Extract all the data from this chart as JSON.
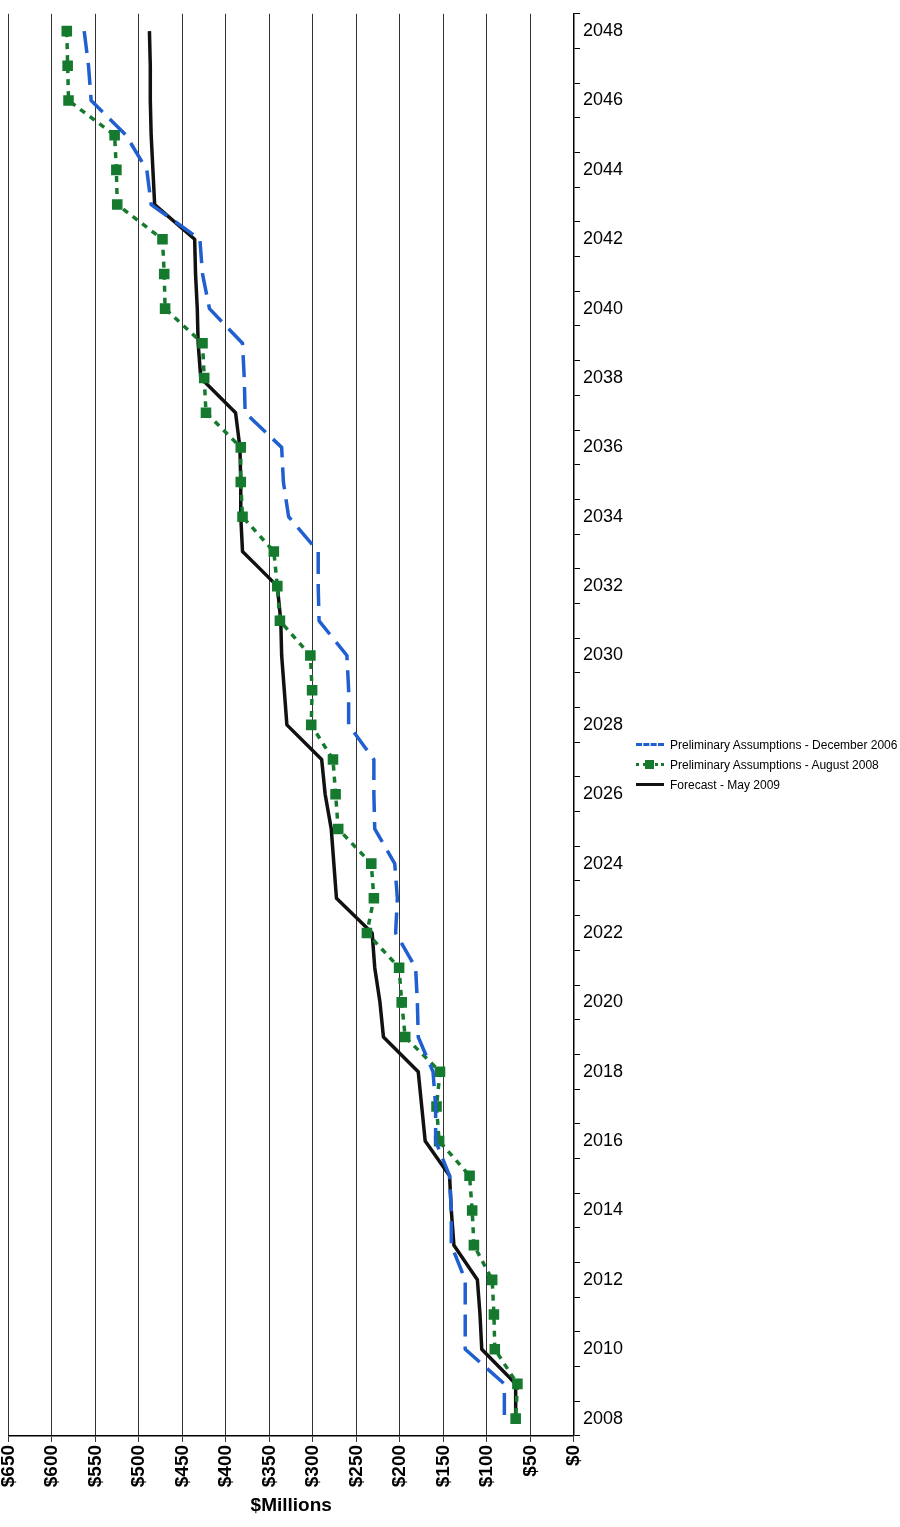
{
  "chart_data": {
    "type": "line",
    "orientation": "horizontal",
    "xlabel": "$Millions",
    "categories": [
      "2048",
      null,
      "2046",
      null,
      "2044",
      null,
      "2042",
      null,
      "2040",
      null,
      "2038",
      null,
      "2036",
      null,
      "2034",
      null,
      "2032",
      null,
      "2030",
      null,
      "2028",
      null,
      "2026",
      null,
      "2024",
      null,
      "2022",
      null,
      "2020",
      null,
      "2018",
      null,
      "2016",
      null,
      "2014",
      null,
      "2012",
      null,
      "2010",
      null,
      "2008"
    ],
    "xlim": [
      650,
      0
    ],
    "xticks": [
      {
        "value": 650,
        "label": "$650"
      },
      {
        "value": 600,
        "label": "$600"
      },
      {
        "value": 550,
        "label": "$550"
      },
      {
        "value": 500,
        "label": "$500"
      },
      {
        "value": 450,
        "label": "$450"
      },
      {
        "value": 400,
        "label": "$400"
      },
      {
        "value": 350,
        "label": "$350"
      },
      {
        "value": 300,
        "label": "$300"
      },
      {
        "value": 250,
        "label": "$250"
      },
      {
        "value": 200,
        "label": "$200"
      },
      {
        "value": 150,
        "label": "$150"
      },
      {
        "value": 100,
        "label": "$100"
      },
      {
        "value": 50,
        "label": "$50"
      },
      {
        "value": 0,
        "label": "$0"
      }
    ],
    "grid": "x",
    "legend": "right",
    "series": [
      {
        "name": "Preliminary Assumptions - December 2006",
        "color": "#1f5fd0",
        "line_style": "dashed",
        "marker": "none",
        "values": [
          563,
          558,
          555,
          515,
          491,
          486,
          430,
          427,
          419,
          381,
          379,
          378,
          336,
          334,
          328,
          294,
          294,
          293,
          261,
          259,
          259,
          230,
          230,
          229,
          206,
          203,
          205,
          182,
          180,
          179,
          162,
          159,
          159,
          143,
          141,
          141,
          125,
          125,
          125,
          80,
          80
        ]
      },
      {
        "name": "Preliminary Assumptions - August 2008",
        "color": "#157a2e",
        "line_style": "dotted",
        "marker": "square",
        "values": [
          583,
          582,
          581,
          528,
          526,
          525,
          473,
          471,
          470,
          427,
          425,
          423,
          383,
          383,
          381,
          345,
          341,
          338,
          303,
          301,
          302,
          277,
          274,
          271,
          233,
          230,
          238,
          201,
          198,
          194,
          154,
          158,
          155,
          120,
          117,
          115,
          94,
          92,
          91,
          65,
          67
        ]
      },
      {
        "name": "Forecast - May 2009",
        "color": "#111111",
        "line_style": "solid",
        "marker": "none",
        "values": [
          488,
          487,
          487,
          486,
          484,
          482,
          436,
          435,
          433,
          432,
          429,
          389,
          384,
          383,
          383,
          381,
          341,
          337,
          336,
          333,
          330,
          290,
          286,
          279,
          276,
          273,
          232,
          229,
          223,
          219,
          179,
          175,
          171,
          143,
          141,
          138,
          111,
          108,
          106,
          67,
          67
        ]
      }
    ]
  }
}
